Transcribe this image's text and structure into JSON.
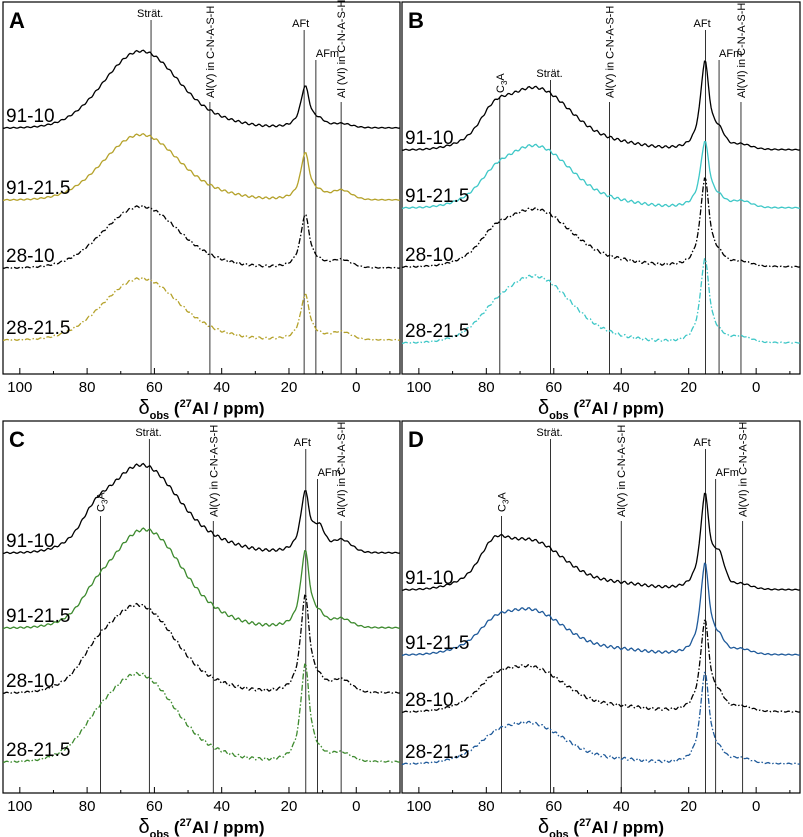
{
  "figure": {
    "x_label_prefix": "δ",
    "x_label_sub": "obs",
    "x_label_rest": " (",
    "x_label_sup": "27",
    "x_label_tail": "Al / ppm)"
  },
  "chart_data": [
    {
      "panel": "A",
      "type": "line",
      "x_ticks": [
        "100",
        "80",
        "60",
        "40",
        "20",
        "0"
      ],
      "xlim": [
        105,
        -13
      ],
      "xlabel": "δobs (27Al / ppm)",
      "ref_lines": [
        {
          "label": "Strät.",
          "x": 61,
          "vertical": false
        },
        {
          "label": "Al(V) in C-N-A-S-H",
          "x": 43.5,
          "vertical": true
        },
        {
          "label": "AFt",
          "x": 15.5,
          "vertical": false
        },
        {
          "label": "AFm",
          "x": 12,
          "vertical": false
        },
        {
          "label": "Al (VI) in C-N-A-S-H",
          "x": 4.5,
          "vertical": true
        }
      ],
      "series": [
        {
          "name": "91-10",
          "color": "#000000",
          "dash": "solid",
          "c3a": 0,
          "strat": 1.0,
          "aft": 0.55,
          "afm": 0.07,
          "alv": 0.06,
          "alvi": 0.05,
          "center": 64
        },
        {
          "name": "91-21.5",
          "color": "#b5a22b",
          "dash": "solid",
          "c3a": 0,
          "strat": 0.85,
          "aft": 0.62,
          "afm": 0.06,
          "alv": 0.05,
          "alvi": 0.12,
          "center": 64
        },
        {
          "name": "28-10",
          "color": "#000000",
          "dash": "dashdot",
          "c3a": 0,
          "strat": 0.8,
          "aft": 0.7,
          "afm": 0.04,
          "alv": 0.04,
          "alvi": 0.1,
          "center": 64
        },
        {
          "name": "28-21.5",
          "color": "#b5a22b",
          "dash": "dashdot",
          "c3a": 0,
          "strat": 0.8,
          "aft": 0.6,
          "afm": 0.03,
          "alv": 0.04,
          "alvi": 0.1,
          "center": 64
        }
      ]
    },
    {
      "panel": "B",
      "type": "line",
      "x_ticks": [
        "100",
        "80",
        "60",
        "40",
        "20",
        "0"
      ],
      "xlim": [
        105,
        -13
      ],
      "xlabel": "δobs (27Al / ppm)",
      "ref_lines": [
        {
          "label": "C3A",
          "x": 76,
          "vertical": false
        },
        {
          "label": "Strät.",
          "x": 61,
          "vertical": false
        },
        {
          "label": "Al(V) in C-N-A-S-H",
          "x": 43.5,
          "vertical": true
        },
        {
          "label": "AFt",
          "x": 15,
          "vertical": false
        },
        {
          "label": "AFm",
          "x": 11,
          "vertical": false
        },
        {
          "label": "Al(VI) in C-N-A-S-H",
          "x": 4.5,
          "vertical": true
        }
      ],
      "series": [
        {
          "name": "91-10",
          "color": "#000000",
          "dash": "solid",
          "c3a": 0.15,
          "strat": 0.7,
          "aft": 1.0,
          "afm": 0.15,
          "alv": 0.06,
          "alvi": 0.05,
          "center": 66
        },
        {
          "name": "91-21.5",
          "color": "#3ec7c7",
          "dash": "solid",
          "c3a": 0.08,
          "strat": 0.7,
          "aft": 0.75,
          "afm": 0.07,
          "alv": 0.05,
          "alvi": 0.07,
          "center": 66
        },
        {
          "name": "28-10",
          "color": "#000000",
          "dash": "dashdot",
          "c3a": 0.1,
          "strat": 0.65,
          "aft": 1.0,
          "afm": 0.08,
          "alv": 0.05,
          "alvi": 0.05,
          "center": 66
        },
        {
          "name": "28-21.5",
          "color": "#3ec7c7",
          "dash": "dashdot",
          "c3a": 0.05,
          "strat": 0.75,
          "aft": 0.95,
          "afm": 0.05,
          "alv": 0.04,
          "alvi": 0.06,
          "center": 66
        }
      ]
    },
    {
      "panel": "C",
      "type": "line",
      "x_ticks": [
        "100",
        "80",
        "60",
        "40",
        "20",
        "0"
      ],
      "xlim": [
        105,
        -13
      ],
      "xlabel": "δobs (27Al / ppm)",
      "ref_lines": [
        {
          "label": "C3A",
          "x": 76,
          "vertical": false
        },
        {
          "label": "Strät.",
          "x": 61.5,
          "vertical": false
        },
        {
          "label": "Al(V) in C-N-A-S-H",
          "x": 42.5,
          "vertical": true
        },
        {
          "label": "AFt",
          "x": 15,
          "vertical": false
        },
        {
          "label": "AFm",
          "x": 11.5,
          "vertical": false
        },
        {
          "label": "Al(VI) in C-N-A-S-H",
          "x": 4.5,
          "vertical": true
        }
      ],
      "series": [
        {
          "name": "91-10",
          "color": "#000000",
          "dash": "solid",
          "c3a": 0.12,
          "strat": 0.85,
          "aft": 0.6,
          "afm": 0.2,
          "alv": 0.06,
          "alvi": 0.12,
          "center": 64
        },
        {
          "name": "91-21.5",
          "color": "#3d8a2e",
          "dash": "solid",
          "c3a": 0.08,
          "strat": 0.95,
          "aft": 0.75,
          "afm": 0.08,
          "alv": 0.05,
          "alvi": 0.08,
          "center": 63
        },
        {
          "name": "28-10",
          "color": "#000000",
          "dash": "dashdot",
          "c3a": 0.08,
          "strat": 0.85,
          "aft": 0.95,
          "afm": 0.07,
          "alv": 0.04,
          "alvi": 0.12,
          "center": 65
        },
        {
          "name": "28-21.5",
          "color": "#3d8a2e",
          "dash": "dashdot",
          "c3a": 0.05,
          "strat": 0.85,
          "aft": 0.95,
          "afm": 0.04,
          "alv": 0.04,
          "alvi": 0.08,
          "center": 65
        }
      ]
    },
    {
      "panel": "D",
      "type": "line",
      "x_ticks": [
        "100",
        "80",
        "60",
        "40",
        "20",
        "0"
      ],
      "xlim": [
        105,
        -13
      ],
      "xlabel": "δobs (27Al / ppm)",
      "ref_lines": [
        {
          "label": "C3A",
          "x": 75.5,
          "vertical": false
        },
        {
          "label": "Strät.",
          "x": 61,
          "vertical": false
        },
        {
          "label": "Al(V) in C-N-A-S-H",
          "x": 40,
          "vertical": true
        },
        {
          "label": "AFt",
          "x": 15,
          "vertical": false
        },
        {
          "label": "AFm",
          "x": 12,
          "vertical": false
        },
        {
          "label": "Al(VI) in C-N-A-S-H",
          "x": 4,
          "vertical": true
        }
      ],
      "series": [
        {
          "name": "91-10",
          "color": "#000000",
          "dash": "solid",
          "c3a": 0.2,
          "strat": 0.55,
          "aft": 1.05,
          "afm": 0.3,
          "alv": 0.06,
          "alvi": 0.05,
          "center": 68
        },
        {
          "name": "91-21.5",
          "color": "#1f5a9a",
          "dash": "solid",
          "c3a": 0.08,
          "strat": 0.5,
          "aft": 1.0,
          "afm": 0.12,
          "alv": 0.05,
          "alvi": 0.05,
          "center": 68
        },
        {
          "name": "28-10",
          "color": "#000000",
          "dash": "dashdot",
          "c3a": 0.08,
          "strat": 0.5,
          "aft": 1.0,
          "afm": 0.12,
          "alv": 0.05,
          "alvi": 0.05,
          "center": 68
        },
        {
          "name": "28-21.5",
          "color": "#1f5a9a",
          "dash": "dashdot",
          "c3a": 0.05,
          "strat": 0.45,
          "aft": 1.0,
          "afm": 0.08,
          "alv": 0.04,
          "alvi": 0.05,
          "center": 68
        }
      ]
    }
  ]
}
